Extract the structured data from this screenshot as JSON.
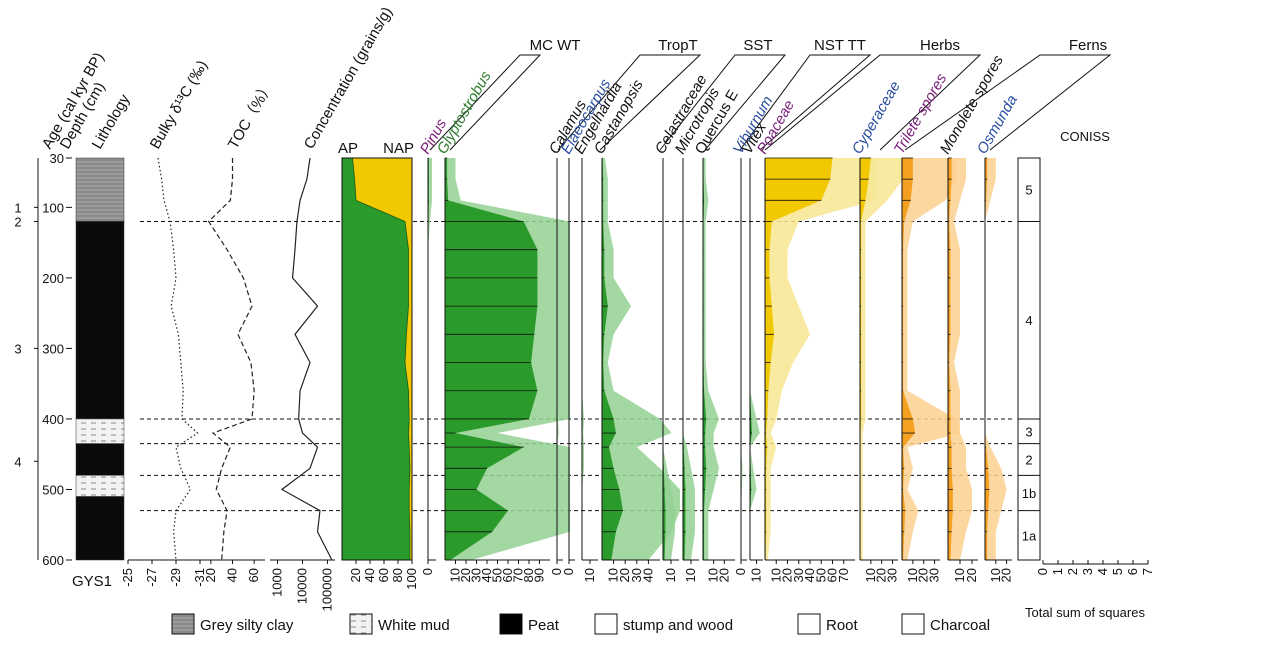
{
  "site": "GYS1",
  "age_title": "Age (cal kyr BP)",
  "depth_title": "Depth (cm)",
  "lithology_title": "Lithology",
  "depth_axis": {
    "lim": [
      30,
      600
    ],
    "ticks": [
      30,
      100,
      200,
      300,
      400,
      500,
      600
    ]
  },
  "age_ticks": [
    {
      "value": 100,
      "label": "1"
    },
    {
      "value": 120,
      "label": "2"
    },
    {
      "value": 300,
      "label": "3"
    },
    {
      "value": 460,
      "label": "4"
    }
  ],
  "lithology": [
    {
      "type": "grey",
      "top": 30,
      "bottom": 120
    },
    {
      "type": "peat",
      "top": 120,
      "bottom": 400
    },
    {
      "type": "white",
      "top": 400,
      "bottom": 435
    },
    {
      "type": "peat",
      "top": 435,
      "bottom": 480
    },
    {
      "type": "white",
      "top": 480,
      "bottom": 510
    },
    {
      "type": "peat",
      "top": 510,
      "bottom": 600
    }
  ],
  "depths": [
    30,
    60,
    90,
    120,
    160,
    200,
    240,
    280,
    320,
    360,
    400,
    420,
    440,
    470,
    500,
    530,
    560,
    600
  ],
  "geochem": [
    {
      "name": "Bulky δ¹³C (‰)",
      "style": "dotted",
      "xlim": [
        -25,
        -31
      ],
      "xticks": [
        -25,
        -27,
        -29,
        -31
      ],
      "values": [
        -27.5,
        -27.8,
        -28,
        -28.5,
        -28.8,
        -29,
        -28.6,
        -29.2,
        -29.4,
        -29.6,
        -29.5,
        -30.8,
        -29,
        -29.4,
        -30.2,
        -29,
        -28.8,
        -29
      ]
    },
    {
      "name": "TOC（%）",
      "style": "dashed",
      "xlim": [
        10,
        70
      ],
      "xticks": [
        20,
        40,
        60
      ],
      "values": [
        40,
        40,
        38,
        18,
        35,
        50,
        58,
        45,
        57,
        60,
        58,
        22,
        38,
        30,
        25,
        35,
        32,
        30
      ]
    },
    {
      "name": "Concentration (grains/g)",
      "style": "solid",
      "log": true,
      "xlim": [
        500,
        200000
      ],
      "xticks": [
        1000,
        10000,
        100000
      ],
      "values": [
        20000,
        15000,
        8000,
        6000,
        5000,
        4000,
        40000,
        5000,
        20000,
        8000,
        7000,
        10000,
        40000,
        20000,
        1500,
        50000,
        40000,
        150000
      ]
    }
  ],
  "ap": {
    "labels": [
      "AP",
      "NAP"
    ],
    "colors": [
      "#2a9a2a",
      "#f2c800"
    ],
    "xlim": [
      0,
      100
    ],
    "xticks": [
      20,
      40,
      60,
      80,
      100
    ],
    "values": [
      15,
      18,
      20,
      90,
      95,
      95,
      95,
      92,
      90,
      95,
      96,
      95,
      96,
      97,
      96,
      96,
      97,
      97
    ]
  },
  "groups": [
    "MC WT",
    "TropT",
    "SST",
    "NST TT",
    "Herbs",
    "Ferns"
  ],
  "panels": [
    {
      "name": "Pinus",
      "label_color": "#7a1f7a",
      "color": "#2a9a2a",
      "xlim": [
        0,
        10
      ],
      "xticks": [
        0
      ],
      "values": [
        1,
        1,
        1,
        0.5,
        0,
        0,
        0,
        0,
        0,
        0,
        0,
        0,
        0,
        0,
        0,
        0,
        0,
        0
      ]
    },
    {
      "name": "Glyptostrobus",
      "label_color": "#2e7d2e",
      "color": "#2a9a2a",
      "xlim": [
        0,
        100
      ],
      "xticks": [
        10,
        20,
        30,
        40,
        50,
        60,
        70,
        80,
        90
      ],
      "values": [
        2,
        2,
        3,
        75,
        88,
        88,
        88,
        85,
        82,
        88,
        80,
        10,
        75,
        40,
        30,
        60,
        45,
        5
      ]
    },
    {
      "name": "Calamus",
      "label_color": "#111111",
      "color": "#2a9a2a",
      "xlim": [
        0,
        10
      ],
      "xticks": [
        0
      ],
      "values": [
        0,
        0,
        0,
        0,
        0,
        0,
        0,
        0,
        0,
        0,
        0.3,
        0.6,
        0,
        0,
        0,
        0,
        0,
        0
      ]
    },
    {
      "name": "Elaeocarpus",
      "label_color": "#2b4fa0",
      "color": "#2a9a2a",
      "xlim": [
        0,
        10
      ],
      "xticks": [
        0
      ],
      "values": [
        0,
        0,
        0,
        0,
        0,
        0,
        0,
        0,
        0,
        0,
        0,
        0,
        0,
        0,
        0.3,
        0,
        0,
        0
      ]
    },
    {
      "name": "Engelhardia",
      "label_color": "#111111",
      "color": "#2a9a2a",
      "xlim": [
        0,
        20
      ],
      "xticks": [
        10
      ],
      "values": [
        0,
        0,
        0,
        0,
        0,
        0,
        0,
        0,
        0,
        0,
        0.5,
        0.3,
        0.5,
        0.5,
        0,
        0,
        0,
        0
      ]
    },
    {
      "name": "Castanopsis",
      "label_color": "#111111",
      "color": "#2a9a2a",
      "xlim": [
        0,
        50
      ],
      "xticks": [
        10,
        20,
        30,
        40
      ],
      "values": [
        0.5,
        1,
        1,
        1,
        2,
        2,
        5,
        2,
        1,
        2,
        10,
        12,
        6,
        10,
        15,
        18,
        12,
        8
      ]
    },
    {
      "name": "Celastraceae",
      "label_color": "#111111",
      "color": "#2a9a2a",
      "xlim": [
        0,
        20
      ],
      "xticks": [
        10
      ],
      "values": [
        0,
        0,
        0,
        0,
        0,
        0,
        0,
        0,
        0,
        0,
        0,
        0,
        0,
        1,
        2,
        3,
        3,
        2
      ]
    },
    {
      "name": "Microtropis",
      "label_color": "#111111",
      "color": "#2a9a2a",
      "xlim": [
        0,
        20
      ],
      "xticks": [
        10
      ],
      "values": [
        0,
        0,
        0,
        0,
        0,
        0,
        0,
        0,
        0,
        0,
        0,
        0,
        1,
        2,
        3,
        3,
        3,
        2
      ]
    },
    {
      "name": "Quercus E",
      "label_color": "#111111",
      "color": "#2a9a2a",
      "xlim": [
        0,
        30
      ],
      "xticks": [
        10,
        20
      ],
      "values": [
        0.5,
        0.5,
        1,
        0.5,
        0.5,
        0.5,
        0.5,
        0.5,
        0.5,
        1,
        3,
        2,
        2,
        3,
        2,
        1,
        1,
        1
      ]
    },
    {
      "name": "Viburnum",
      "label_color": "#2b4fa0",
      "color": "#2a9a2a",
      "xlim": [
        0,
        10
      ],
      "xticks": [
        0
      ],
      "values": [
        0,
        0,
        0,
        0,
        0,
        0,
        0,
        0,
        0,
        0,
        0,
        0,
        0,
        0.5,
        0.3,
        0,
        0,
        0
      ]
    },
    {
      "name": "Vitex",
      "label_color": "#111111",
      "color": "#2a9a2a",
      "xlim": [
        0,
        20
      ],
      "xticks": [
        10
      ],
      "values": [
        0,
        0,
        0,
        0,
        0,
        0,
        0,
        0,
        0,
        0,
        2,
        3,
        0,
        1,
        2,
        0,
        0,
        0
      ]
    },
    {
      "name": "Poaceae",
      "label_color": "#7a1f7a",
      "color": "#f2c800",
      "xlim": [
        0,
        80
      ],
      "xticks": [
        10,
        20,
        30,
        40,
        50,
        60,
        70
      ],
      "values": [
        60,
        58,
        50,
        6,
        4,
        4,
        6,
        8,
        5,
        3,
        2,
        1,
        2,
        1,
        1,
        1,
        1,
        0.5
      ]
    },
    {
      "name": "Cyperaceae",
      "label_color": "#2b4fa0",
      "color": "#f2c800",
      "xlim": [
        0,
        35
      ],
      "xticks": [
        10,
        20,
        30
      ],
      "values": [
        10,
        8,
        5,
        1,
        1,
        1,
        1,
        1,
        1,
        1,
        1,
        0.5,
        0.5,
        0.5,
        0.5,
        0.5,
        0.5,
        0.5
      ]
    },
    {
      "name": "Trilete spores",
      "label_color": "#7a1f7a",
      "color": "#f5a020",
      "xlim": [
        0,
        35
      ],
      "xticks": [
        10,
        20,
        30
      ],
      "values": [
        10,
        10,
        8,
        2,
        1,
        1,
        1,
        1,
        1,
        1,
        10,
        12,
        1,
        2,
        1,
        3,
        2,
        1
      ]
    },
    {
      "name": "Monolete spores",
      "label_color": "#111111",
      "color": "#f5a020",
      "xlim": [
        0,
        25
      ],
      "xticks": [
        10,
        20
      ],
      "values": [
        3,
        3,
        2,
        1,
        2,
        2,
        2,
        2,
        1,
        2,
        2,
        2,
        3,
        3,
        4,
        4,
        3,
        2
      ]
    },
    {
      "name": "Osmunda",
      "label_color": "#2b4fa0",
      "color": "#f5a020",
      "xlim": [
        0,
        25
      ],
      "xticks": [
        10,
        20
      ],
      "values": [
        2,
        2,
        1,
        0,
        0,
        0,
        0,
        0,
        0,
        0,
        0,
        0,
        1,
        3,
        4,
        3,
        2,
        2
      ]
    }
  ],
  "coniss": {
    "title": "CONISS",
    "axis_label": "Total sum of squares",
    "xlim": [
      0,
      7
    ],
    "xticks": [
      0,
      1,
      2,
      3,
      4,
      5,
      6,
      7
    ],
    "zones": [
      {
        "name": "5",
        "top": 30,
        "bottom": 120
      },
      {
        "name": "4",
        "top": 120,
        "bottom": 400
      },
      {
        "name": "3",
        "top": 400,
        "bottom": 435
      },
      {
        "name": "2",
        "top": 435,
        "bottom": 480
      },
      {
        "name": "1b",
        "top": 480,
        "bottom": 530
      },
      {
        "name": "1a",
        "top": 530,
        "bottom": 600
      }
    ]
  },
  "legend": [
    "Grey silty clay",
    "White mud",
    "Peat",
    "stump and wood",
    "Root",
    "Charcoal"
  ]
}
